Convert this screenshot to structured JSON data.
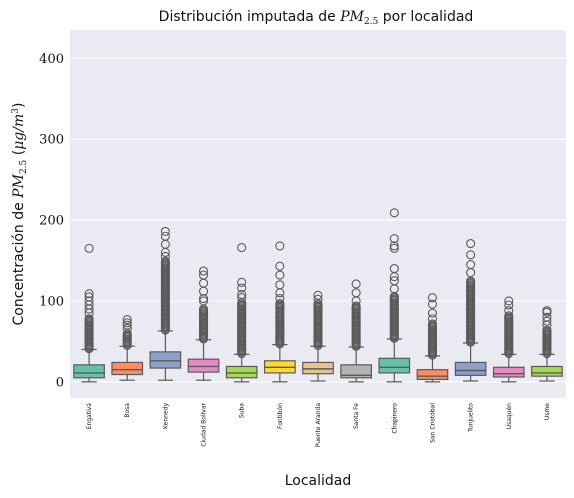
{
  "chart_data": {
    "type": "box",
    "title_parts": {
      "prefix": "Distribución imputada de ",
      "symbol": "PM",
      "subscript": "2.5",
      "suffix": " por localidad"
    },
    "xlabel": "Localidad",
    "ylabel_parts": {
      "prefix": "Concentración de ",
      "symbol": "PM",
      "subscript": "2.5",
      "unit_open": " (",
      "unit_mu": "μg/m",
      "unit_sup": "3",
      "unit_close": ")"
    },
    "ylim": [
      -20,
      435
    ],
    "yticks": [
      "0",
      "100",
      "200",
      "300",
      "400"
    ],
    "ytick_values": [
      0,
      100,
      200,
      300,
      400
    ],
    "grid": true,
    "categories": [
      "Engativá",
      "Bosa",
      "Kennedy",
      "Ciudad Bolívar",
      "Suba",
      "Fontibón",
      "Puente Aranda",
      "Santa Fe",
      "Chapinero",
      "San Cristóbal",
      "Tunjuelito",
      "Usaquén",
      "Usme"
    ],
    "colors": [
      "#66c2a5",
      "#fc8d62",
      "#8da0cb",
      "#e78ac3",
      "#a6d854",
      "#ffd92f",
      "#e5c494",
      "#b3b3b3",
      "#66c2a5",
      "#fc8d62",
      "#8da0cb",
      "#e78ac3",
      "#a6d854"
    ],
    "boxes": [
      {
        "whislo": 0,
        "q1": 5,
        "med": 11,
        "q3": 21,
        "whishi": 40,
        "fliers_dense": [
          41,
          78
        ],
        "fliers": [
          85,
          90,
          95,
          100,
          105,
          109,
          165
        ]
      },
      {
        "whislo": 2,
        "q1": 9,
        "med": 15,
        "q3": 24,
        "whishi": 44,
        "fliers_dense": [
          45,
          60
        ],
        "fliers": [
          66,
          70,
          73,
          77
        ]
      },
      {
        "whislo": 2,
        "q1": 17,
        "med": 26,
        "q3": 37,
        "whishi": 63,
        "fliers_dense": [
          64,
          150
        ],
        "fliers": [
          155,
          160,
          170,
          180,
          186
        ]
      },
      {
        "whislo": 2,
        "q1": 12,
        "med": 19,
        "q3": 28,
        "whishi": 52,
        "fliers_dense": [
          53,
          90
        ],
        "fliers": [
          100,
          103,
          112,
          122,
          132,
          137
        ]
      },
      {
        "whislo": 0,
        "q1": 5,
        "med": 11,
        "q3": 19,
        "whishi": 34,
        "fliers_dense": [
          35,
          98
        ],
        "fliers": [
          104,
          108,
          116,
          123,
          166
        ]
      },
      {
        "whislo": 0,
        "q1": 11,
        "med": 18,
        "q3": 26,
        "whishi": 46,
        "fliers_dense": [
          47,
          97
        ],
        "fliers": [
          103,
          110,
          120,
          132,
          143,
          168
        ]
      },
      {
        "whislo": 1,
        "q1": 10,
        "med": 16,
        "q3": 24,
        "whishi": 44,
        "fliers_dense": [
          45,
          98
        ],
        "fliers": [
          102,
          107
        ]
      },
      {
        "whislo": 0,
        "q1": 5,
        "med": 8,
        "q3": 21,
        "whishi": 43,
        "fliers_dense": [
          44,
          95
        ],
        "fliers": [
          100,
          110,
          121
        ]
      },
      {
        "whislo": 0,
        "q1": 11,
        "med": 18,
        "q3": 29,
        "whishi": 53,
        "fliers_dense": [
          54,
          107
        ],
        "fliers": [
          115,
          125,
          130,
          140,
          165,
          168,
          177,
          209
        ]
      },
      {
        "whislo": 0,
        "q1": 3,
        "med": 7,
        "q3": 15,
        "whishi": 32,
        "fliers_dense": [
          33,
          72
        ],
        "fliers": [
          78,
          85,
          96,
          104
        ]
      },
      {
        "whislo": 1,
        "q1": 8,
        "med": 14,
        "q3": 24,
        "whishi": 48,
        "fliers_dense": [
          49,
          125
        ],
        "fliers": [
          135,
          145,
          157,
          171
        ]
      },
      {
        "whislo": 0,
        "q1": 6,
        "med": 10,
        "q3": 18,
        "whishi": 34,
        "fliers_dense": [
          35,
          82
        ],
        "fliers": [
          88,
          95,
          100
        ]
      },
      {
        "whislo": 1,
        "q1": 7,
        "med": 11,
        "q3": 19,
        "whishi": 34,
        "fliers_dense": [
          35,
          64
        ],
        "fliers": [
          70,
          75,
          80,
          86,
          88
        ]
      }
    ]
  }
}
